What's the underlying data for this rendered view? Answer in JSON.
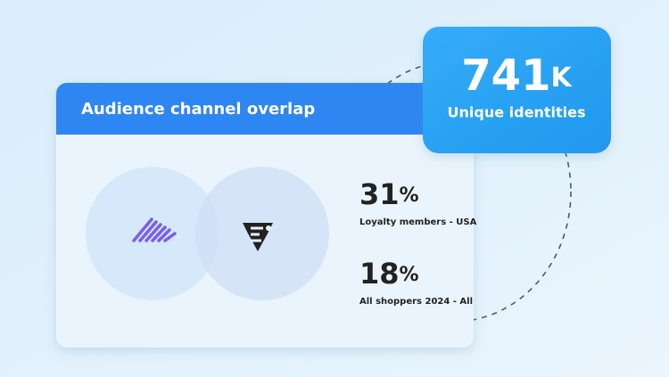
{
  "card": {
    "title": "Audience channel overlap",
    "stats": [
      {
        "number": "31",
        "unit": "%",
        "label": "Loyalty members - USA"
      },
      {
        "number": "18",
        "unit": "%",
        "label": "All shoppers 2024 - All"
      }
    ]
  },
  "badge": {
    "number": "741",
    "unit": "K",
    "label": "Unique identities"
  }
}
